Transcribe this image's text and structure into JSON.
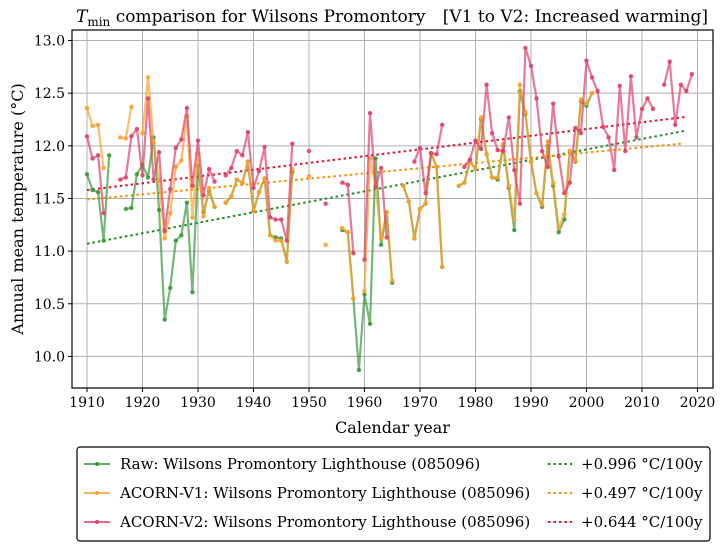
{
  "chart_data": {
    "type": "line",
    "title_main": "T",
    "title_sub": "min",
    "title_rest": " comparison for Wilsons Promontory",
    "title_bracket": "[V1 to V2: Increased warming]",
    "xlabel": "Calendar year",
    "ylabel": "Annual mean temperature (°C)",
    "xlim": [
      1907.3,
      2022.8
    ],
    "ylim": [
      9.7,
      13.1
    ],
    "xticks": [
      1910,
      1920,
      1930,
      1940,
      1950,
      1960,
      1970,
      1980,
      1990,
      2000,
      2010,
      2020
    ],
    "yticks": [
      10.0,
      10.5,
      11.0,
      11.5,
      12.0,
      12.5,
      13.0
    ],
    "ytick_labels": [
      "10.0",
      "10.5",
      "11.0",
      "11.5",
      "12.0",
      "12.5",
      "13.0"
    ],
    "grid": true,
    "legend_position": "bottom-outside",
    "series": [
      {
        "name": "Raw: Wilsons Promontory Lighthouse (085096)",
        "color": "#3a9a3a",
        "years": [
          1910,
          1911,
          1912,
          1913,
          1914,
          null,
          1917,
          1918,
          1919,
          1920,
          1921,
          1922,
          1923,
          1924,
          1925,
          1926,
          1927,
          1928,
          1929,
          1930,
          1931,
          1932,
          1933,
          null,
          1935,
          1936,
          1937,
          1938,
          1939,
          1940,
          1941,
          1942,
          1943,
          1944,
          1945,
          1946,
          1947,
          null,
          1956,
          1957,
          1958,
          1959,
          1960,
          1961,
          1962,
          1963,
          1964,
          1965,
          null,
          1967,
          1968,
          1969,
          1970,
          1971,
          1972,
          1973,
          1974,
          null,
          1977,
          1978,
          1979,
          1980,
          1981,
          1982,
          1983,
          1984,
          1985,
          1986,
          1987,
          1988,
          1989,
          1990,
          1991,
          1992,
          1993,
          1994,
          1995,
          1996,
          1997,
          1998,
          1999,
          2000,
          2001
        ],
        "values": [
          11.73,
          11.58,
          11.56,
          11.1,
          11.91,
          null,
          11.4,
          11.41,
          11.73,
          11.82,
          11.7,
          12.08,
          11.39,
          10.35,
          10.65,
          11.1,
          11.15,
          11.46,
          10.61,
          11.81,
          11.37,
          11.57,
          11.42,
          null,
          11.46,
          11.52,
          11.68,
          11.65,
          11.85,
          11.38,
          11.56,
          11.69,
          11.15,
          11.13,
          11.12,
          10.9,
          11.75,
          null,
          11.2,
          11.18,
          10.55,
          9.87,
          10.59,
          10.31,
          11.88,
          11.06,
          11.37,
          10.7,
          10.81,
          11.62,
          11.47,
          11.12,
          11.4,
          11.45,
          11.93,
          11.8,
          10.85,
          null,
          11.62,
          11.65,
          11.85,
          11.78,
          12.25,
          11.92,
          11.7,
          11.68,
          12.0,
          11.6,
          11.2,
          12.52,
          12.3,
          11.85,
          11.55,
          11.42,
          12.0,
          11.62,
          11.18,
          11.3,
          11.95,
          11.85,
          12.42,
          12.38,
          12.5
        ],
        "marker": "dot"
      },
      {
        "name": "ACORN-V1: Wilsons Promontory Lighthouse (085096)",
        "color": "#ff9f2a",
        "years": [
          1910,
          1911,
          1912,
          1913,
          null,
          1916,
          1917,
          1918,
          null,
          1920,
          1921,
          1922,
          1923,
          1924,
          1925,
          1926,
          1927,
          1928,
          1929,
          1930,
          1931,
          1932,
          1933,
          null,
          1935,
          1936,
          1937,
          1938,
          1939,
          1940,
          1941,
          1942,
          1943,
          1944,
          1945,
          1946,
          1947,
          null,
          1950,
          null,
          1953,
          null,
          1956,
          1957,
          1958,
          null,
          1960,
          1961,
          1962,
          1963,
          1964,
          1965,
          null,
          1967,
          1968,
          1969,
          1970,
          1971,
          1972,
          1973,
          1974,
          null,
          1977,
          1978,
          1979,
          1980,
          1981,
          1982,
          1983,
          1984,
          1985,
          1986,
          1987,
          1988,
          1989,
          1990,
          1991,
          1992,
          1993,
          1994,
          1995,
          1996,
          1997,
          1998,
          1999,
          2000,
          2001
        ],
        "values": [
          12.36,
          12.19,
          12.2,
          11.79,
          null,
          12.08,
          12.07,
          12.37,
          null,
          12.12,
          12.65,
          12.03,
          11.67,
          11.12,
          11.36,
          11.8,
          11.86,
          12.28,
          11.32,
          11.92,
          11.33,
          11.6,
          11.42,
          null,
          11.46,
          11.52,
          11.68,
          11.65,
          11.85,
          11.38,
          11.56,
          11.69,
          11.15,
          11.1,
          11.1,
          10.9,
          11.78,
          null,
          11.71,
          null,
          11.06,
          null,
          11.22,
          11.18,
          10.55,
          null,
          10.62,
          11.88,
          11.62,
          11.12,
          11.37,
          10.72,
          null,
          11.62,
          11.47,
          11.12,
          11.4,
          11.45,
          11.93,
          11.8,
          10.85,
          null,
          11.62,
          11.65,
          11.85,
          11.78,
          12.27,
          11.92,
          11.7,
          11.7,
          12.02,
          11.62,
          11.3,
          12.58,
          12.32,
          11.85,
          11.55,
          11.44,
          12.04,
          11.65,
          11.22,
          11.35,
          11.95,
          11.86,
          12.44,
          12.4,
          12.5
        ],
        "marker": "dot"
      },
      {
        "name": "ACORN-V2: Wilsons Promontory Lighthouse (085096)",
        "color": "#e0406a",
        "years": [
          1910,
          1911,
          1912,
          1913,
          null,
          1916,
          1917,
          1918,
          1919,
          1920,
          1921,
          1922,
          1923,
          1924,
          1925,
          1926,
          1927,
          1928,
          1929,
          1930,
          1931,
          1932,
          1933,
          null,
          1935,
          1936,
          1937,
          1938,
          1939,
          1940,
          1941,
          1942,
          1943,
          1944,
          1945,
          1946,
          1947,
          null,
          1950,
          null,
          1953,
          null,
          1956,
          1957,
          1958,
          null,
          1960,
          1961,
          1962,
          1963,
          1964,
          null,
          1969,
          1970,
          1971,
          1972,
          1973,
          1974,
          null,
          1977,
          1978,
          1979,
          1980,
          1981,
          1982,
          1983,
          1984,
          1985,
          1986,
          1987,
          1988,
          1989,
          1990,
          1991,
          1992,
          1993,
          1994,
          1995,
          1996,
          1997,
          1998,
          1999,
          2000,
          2001,
          2002,
          2003,
          2004,
          2005,
          2006,
          2007,
          2008,
          2009,
          2010,
          2011,
          2012,
          null,
          2014,
          2015,
          2016,
          2017,
          2018,
          2019
        ],
        "values": [
          12.09,
          11.88,
          11.91,
          11.36,
          null,
          11.68,
          11.7,
          12.09,
          12.16,
          11.72,
          12.45,
          11.68,
          11.94,
          11.19,
          11.59,
          11.98,
          12.06,
          12.36,
          11.62,
          12.05,
          11.53,
          11.78,
          11.66,
          null,
          11.72,
          11.79,
          11.95,
          11.91,
          12.13,
          11.6,
          11.76,
          11.99,
          11.32,
          11.3,
          11.3,
          11.1,
          12.02,
          null,
          11.95,
          null,
          11.45,
          null,
          11.65,
          11.63,
          10.98,
          null,
          10.92,
          12.31,
          11.61,
          11.79,
          11.13,
          null,
          11.85,
          11.98,
          11.55,
          11.93,
          11.92,
          12.2,
          10.88,
          null,
          11.8,
          11.87,
          12.05,
          11.97,
          12.58,
          12.12,
          11.96,
          11.95,
          12.27,
          11.77,
          11.45,
          12.93,
          12.76,
          12.45,
          11.95,
          11.8,
          12.4,
          11.9,
          11.55,
          11.65,
          12.17,
          12.12,
          12.81,
          12.65,
          12.52,
          12.18,
          12.08,
          11.77,
          12.57,
          11.95,
          12.66,
          12.08,
          12.35,
          12.45,
          12.35,
          null,
          12.58,
          12.8,
          12.2,
          12.58,
          12.52,
          12.68
        ],
        "marker": "dot"
      }
    ],
    "trends": [
      {
        "label": "+0.996 °C/100y",
        "color": "#228b22",
        "x": [
          1910,
          2018
        ],
        "y": [
          11.07,
          12.145
        ]
      },
      {
        "label": "+0.497 °C/100y",
        "color": "#ff8c00",
        "x": [
          1910,
          2017
        ],
        "y": [
          11.49,
          12.02
        ]
      },
      {
        "label": "+0.644 °C/100y",
        "color": "#dc143c",
        "x": [
          1910,
          2018
        ],
        "y": [
          11.58,
          12.275
        ]
      }
    ]
  }
}
